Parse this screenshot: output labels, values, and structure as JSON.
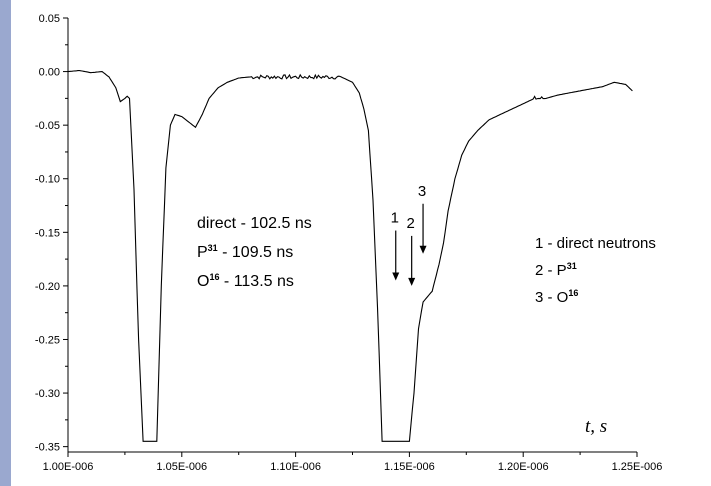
{
  "colors": {
    "left_strip": "#9aa8cf",
    "line": "#000000",
    "background": "#ffffff"
  },
  "chart_data": {
    "type": "line",
    "title": "",
    "xlabel": "t, s",
    "ylabel": "",
    "xlim": [
      1e-06,
      1.25e-06
    ],
    "ylim": [
      -0.355,
      0.05
    ],
    "grid": false,
    "x_ticks": [
      1e-06,
      1.05e-06,
      1.1e-06,
      1.15e-06,
      1.2e-06,
      1.25e-06
    ],
    "x_tick_labels": [
      "1.00E-006",
      "1.05E-006",
      "1.10E-006",
      "1.15E-006",
      "1.20E-006",
      "1.25E-006"
    ],
    "y_ticks": [
      0.05,
      0.0,
      -0.05,
      -0.1,
      -0.15,
      -0.2,
      -0.25,
      -0.3,
      -0.35
    ],
    "y_tick_labels": [
      "0.05",
      "0.00",
      "-0.05",
      "-0.10",
      "-0.15",
      "-0.20",
      "-0.25",
      "-0.30",
      "-0.35"
    ],
    "series": [
      {
        "x": [
          1e-06,
          1.005e-06,
          1.01e-06,
          1.015e-06,
          1.018e-06,
          1.021e-06,
          1.023e-06,
          1.025e-06,
          1.026e-06,
          1.027e-06,
          1.029e-06,
          1.031e-06,
          1.033e-06,
          1.036e-06,
          1.039e-06,
          1.041e-06,
          1.043e-06,
          1.045e-06,
          1.047e-06,
          1.05e-06,
          1.053e-06,
          1.056e-06,
          1.059e-06,
          1.062e-06,
          1.066e-06,
          1.07e-06,
          1.075e-06,
          1.08e-06,
          1.09e-06,
          1.1e-06,
          1.11e-06,
          1.12e-06,
          1.125e-06,
          1.128e-06,
          1.13e-06,
          1.132e-06,
          1.134e-06,
          1.136e-06,
          1.138e-06,
          1.14e-06,
          1.142e-06,
          1.144e-06,
          1.146e-06,
          1.148e-06,
          1.15e-06,
          1.152e-06,
          1.154e-06,
          1.156e-06,
          1.158e-06,
          1.16e-06,
          1.163e-06,
          1.165e-06,
          1.167e-06,
          1.17e-06,
          1.173e-06,
          1.176e-06,
          1.18e-06,
          1.185e-06,
          1.19e-06,
          1.195e-06,
          1.2e-06,
          1.205e-06,
          1.21e-06,
          1.215e-06,
          1.22e-06,
          1.225e-06,
          1.23e-06,
          1.235e-06,
          1.24e-06,
          1.245e-06,
          1.248e-06
        ],
        "y": [
          0.0,
          0.001,
          -0.001,
          0.0,
          -0.005,
          -0.015,
          -0.028,
          -0.025,
          -0.023,
          -0.025,
          -0.11,
          -0.25,
          -0.345,
          -0.345,
          -0.345,
          -0.2,
          -0.09,
          -0.05,
          -0.04,
          -0.042,
          -0.047,
          -0.052,
          -0.04,
          -0.025,
          -0.015,
          -0.01,
          -0.006,
          -0.005,
          -0.005,
          -0.005,
          -0.005,
          -0.005,
          -0.01,
          -0.02,
          -0.035,
          -0.055,
          -0.12,
          -0.22,
          -0.345,
          -0.345,
          -0.345,
          -0.345,
          -0.345,
          -0.345,
          -0.345,
          -0.3,
          -0.24,
          -0.215,
          -0.21,
          -0.205,
          -0.18,
          -0.16,
          -0.13,
          -0.1,
          -0.078,
          -0.065,
          -0.055,
          -0.045,
          -0.04,
          -0.035,
          -0.03,
          -0.025,
          -0.025,
          -0.022,
          -0.02,
          -0.018,
          -0.016,
          -0.014,
          -0.01,
          -0.012,
          -0.018
        ]
      }
    ],
    "annotations": {
      "times": [
        {
          "label": "direct - 102.5 ns",
          "base": "",
          "sup": "",
          "rest": ""
        },
        {
          "label": "",
          "base": "P",
          "sup": "31",
          "rest": " - 109.5 ns"
        },
        {
          "label": "",
          "base": "O",
          "sup": "16",
          "rest": " - 113.5 ns"
        }
      ],
      "legend": [
        {
          "base": "1 - direct neutrons",
          "sup": ""
        },
        {
          "base": "2 - P",
          "sup": "31"
        },
        {
          "base": "3 - O",
          "sup": "16"
        }
      ],
      "arrows": [
        {
          "label": "1",
          "x": 1.144e-06,
          "y": -0.195
        },
        {
          "label": "2",
          "x": 1.151e-06,
          "y": -0.2
        },
        {
          "label": "3",
          "x": 1.156e-06,
          "y": -0.17
        }
      ]
    }
  }
}
